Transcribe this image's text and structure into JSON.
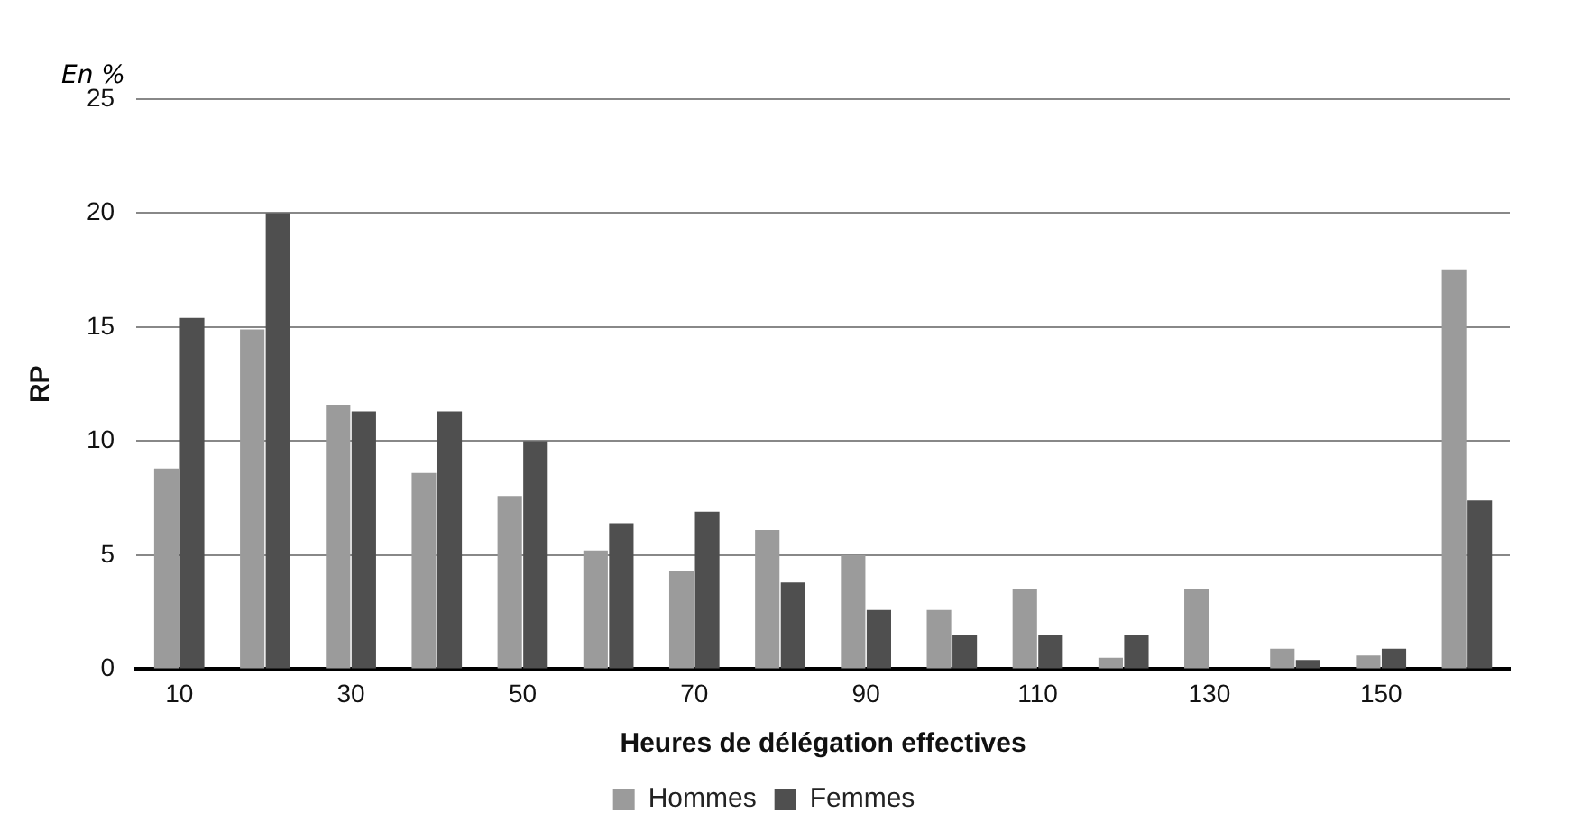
{
  "chart_data": {
    "type": "bar",
    "xlabel": "Heures de délégation effectives",
    "ylabel": "RP",
    "annotations": [
      "En %"
    ],
    "categories": [
      "10",
      null,
      "30",
      null,
      "50",
      null,
      "70",
      null,
      "90",
      null,
      "110",
      null,
      "130",
      null,
      "150",
      null
    ],
    "series": [
      {
        "name": "Hommes",
        "color": "#9b9b9b",
        "values": [
          8.8,
          14.9,
          11.6,
          8.6,
          7.6,
          5.2,
          4.3,
          6.1,
          5.0,
          2.6,
          3.5,
          0.5,
          3.5,
          0.9,
          0.6,
          17.5
        ]
      },
      {
        "name": "Femmes",
        "color": "#4f4f4f",
        "values": [
          15.4,
          20.0,
          11.3,
          11.3,
          10.0,
          6.4,
          6.9,
          3.8,
          2.6,
          1.5,
          1.5,
          1.5,
          0,
          0.4,
          0.9,
          7.4
        ]
      }
    ],
    "ylim": [
      0,
      25
    ],
    "yticks": [
      0,
      5,
      10,
      15,
      20,
      25
    ],
    "grid": "y",
    "legend": "bottom"
  }
}
